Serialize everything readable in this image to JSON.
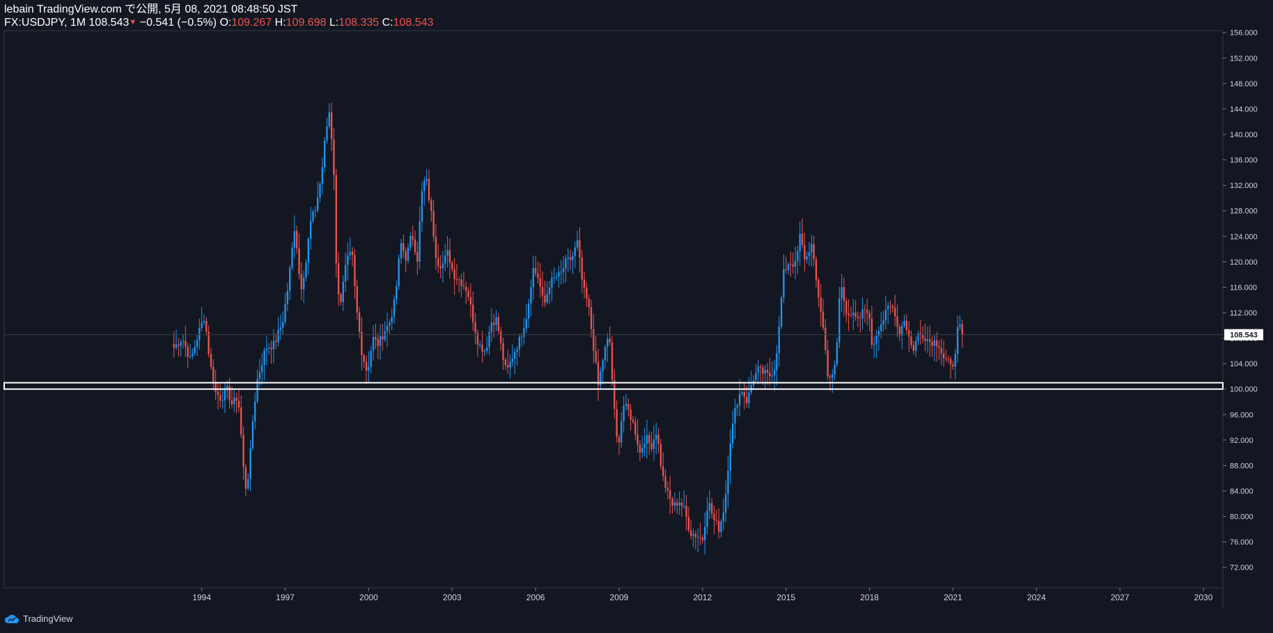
{
  "header": {
    "title": "lebain TradingView.com で公開, 5月 08, 2021 08:48:50 JST",
    "symbol": "FX:USDJPY, 1M",
    "last": "108.543",
    "change": "−0.541 (−0.5%)",
    "o_label": "O:",
    "o_value": "109.267",
    "h_label": "H:",
    "h_value": "109.698",
    "l_label": "L:",
    "l_value": "108.335",
    "c_label": "C:",
    "c_value": "108.543"
  },
  "footer": {
    "brand": "TradingView"
  },
  "colors": {
    "background": "#131722",
    "up": "#2196f3",
    "down": "#ef5350",
    "axis": "#787b86",
    "text": "#d1d4dc",
    "support": "#ffffff",
    "price_tag": "#ffffff"
  },
  "chart_data": {
    "type": "candlestick",
    "symbol": "FX:USDJPY",
    "interval": "1M",
    "price_scale": {
      "ticks": [
        "72.000",
        "76.000",
        "80.000",
        "84.000",
        "88.000",
        "92.000",
        "96.000",
        "100.000",
        "104.000",
        "108.000",
        "112.000",
        "116.000",
        "120.000",
        "124.000",
        "128.000",
        "132.000",
        "136.000",
        "140.000",
        "144.000",
        "148.000",
        "152.000",
        "156.000"
      ],
      "range": [
        68.8,
        156.3
      ]
    },
    "time_scale": {
      "ticks": [
        "1994",
        "1997",
        "2000",
        "2003",
        "2006",
        "2009",
        "2012",
        "2015",
        "2018",
        "2021",
        "2024",
        "2027",
        "2030"
      ],
      "range": [
        1986.9,
        2030.7
      ]
    },
    "last_price": 108.543,
    "last_price_label": "108.543",
    "support_zone": [
      100.0,
      101.0
    ],
    "close_path": [
      [
        1993.0,
        106.5
      ],
      [
        1993.3,
        108.0
      ],
      [
        1993.6,
        104.5
      ],
      [
        1993.9,
        109.0
      ],
      [
        1994.1,
        111.5
      ],
      [
        1994.3,
        104.0
      ],
      [
        1994.5,
        99.5
      ],
      [
        1994.7,
        98.5
      ],
      [
        1994.9,
        100.0
      ],
      [
        1995.1,
        97.5
      ],
      [
        1995.3,
        99.0
      ],
      [
        1995.45,
        91.0
      ],
      [
        1995.55,
        84.0
      ],
      [
        1995.7,
        87.0
      ],
      [
        1995.85,
        96.0
      ],
      [
        1996.0,
        101.5
      ],
      [
        1996.3,
        106.5
      ],
      [
        1996.6,
        107.0
      ],
      [
        1996.9,
        110.5
      ],
      [
        1997.1,
        116.0
      ],
      [
        1997.35,
        126.0
      ],
      [
        1997.55,
        115.5
      ],
      [
        1997.75,
        120.0
      ],
      [
        1997.9,
        126.0
      ],
      [
        1998.1,
        128.5
      ],
      [
        1998.3,
        133.5
      ],
      [
        1998.45,
        140.0
      ],
      [
        1998.6,
        144.0
      ],
      [
        1998.75,
        134.0
      ],
      [
        1998.85,
        116.5
      ],
      [
        1999.0,
        114.0
      ],
      [
        1999.2,
        120.0
      ],
      [
        1999.4,
        121.5
      ],
      [
        1999.55,
        113.0
      ],
      [
        1999.75,
        106.0
      ],
      [
        1999.95,
        102.5
      ],
      [
        2000.15,
        108.0
      ],
      [
        2000.35,
        107.0
      ],
      [
        2000.55,
        109.0
      ],
      [
        2000.75,
        110.5
      ],
      [
        2000.95,
        114.0
      ],
      [
        2001.15,
        123.0
      ],
      [
        2001.35,
        120.5
      ],
      [
        2001.55,
        124.5
      ],
      [
        2001.75,
        120.5
      ],
      [
        2001.9,
        130.5
      ],
      [
        2002.05,
        133.5
      ],
      [
        2002.25,
        127.5
      ],
      [
        2002.45,
        120.0
      ],
      [
        2002.65,
        119.5
      ],
      [
        2002.85,
        121.5
      ],
      [
        2003.05,
        118.0
      ],
      [
        2003.3,
        117.0
      ],
      [
        2003.55,
        115.5
      ],
      [
        2003.75,
        111.0
      ],
      [
        2003.95,
        107.0
      ],
      [
        2004.2,
        106.0
      ],
      [
        2004.4,
        110.5
      ],
      [
        2004.6,
        111.0
      ],
      [
        2004.8,
        105.5
      ],
      [
        2004.95,
        102.5
      ],
      [
        2005.2,
        105.5
      ],
      [
        2005.45,
        108.0
      ],
      [
        2005.7,
        112.0
      ],
      [
        2005.9,
        119.0
      ],
      [
        2006.1,
        117.5
      ],
      [
        2006.3,
        113.0
      ],
      [
        2006.5,
        116.5
      ],
      [
        2006.7,
        117.5
      ],
      [
        2006.9,
        118.0
      ],
      [
        2007.1,
        120.0
      ],
      [
        2007.3,
        120.5
      ],
      [
        2007.5,
        123.0
      ],
      [
        2007.7,
        116.0
      ],
      [
        2007.9,
        113.0
      ],
      [
        2008.1,
        106.0
      ],
      [
        2008.25,
        100.5
      ],
      [
        2008.45,
        105.5
      ],
      [
        2008.65,
        108.5
      ],
      [
        2008.8,
        98.0
      ],
      [
        2008.95,
        90.5
      ],
      [
        2009.15,
        97.5
      ],
      [
        2009.35,
        96.5
      ],
      [
        2009.55,
        94.0
      ],
      [
        2009.75,
        90.0
      ],
      [
        2009.95,
        92.5
      ],
      [
        2010.15,
        91.0
      ],
      [
        2010.35,
        93.5
      ],
      [
        2010.55,
        86.5
      ],
      [
        2010.75,
        83.5
      ],
      [
        2010.95,
        81.5
      ],
      [
        2011.15,
        82.5
      ],
      [
        2011.35,
        81.0
      ],
      [
        2011.55,
        77.5
      ],
      [
        2011.8,
        77.0
      ],
      [
        2012.0,
        76.5
      ],
      [
        2012.2,
        82.5
      ],
      [
        2012.4,
        79.5
      ],
      [
        2012.6,
        78.0
      ],
      [
        2012.8,
        82.0
      ],
      [
        2013.0,
        92.0
      ],
      [
        2013.2,
        97.5
      ],
      [
        2013.4,
        100.0
      ],
      [
        2013.6,
        98.0
      ],
      [
        2013.8,
        101.5
      ],
      [
        2014.0,
        103.0
      ],
      [
        2014.2,
        102.5
      ],
      [
        2014.4,
        102.0
      ],
      [
        2014.6,
        103.5
      ],
      [
        2014.75,
        109.5
      ],
      [
        2014.9,
        118.0
      ],
      [
        2015.1,
        120.0
      ],
      [
        2015.35,
        119.5
      ],
      [
        2015.5,
        124.0
      ],
      [
        2015.7,
        120.0
      ],
      [
        2015.9,
        123.0
      ],
      [
        2016.1,
        116.5
      ],
      [
        2016.3,
        111.0
      ],
      [
        2016.5,
        102.5
      ],
      [
        2016.65,
        101.5
      ],
      [
        2016.8,
        104.5
      ],
      [
        2016.95,
        117.0
      ],
      [
        2017.15,
        112.5
      ],
      [
        2017.4,
        111.5
      ],
      [
        2017.6,
        110.5
      ],
      [
        2017.8,
        112.5
      ],
      [
        2017.95,
        112.5
      ],
      [
        2018.1,
        106.5
      ],
      [
        2018.3,
        109.5
      ],
      [
        2018.5,
        111.0
      ],
      [
        2018.7,
        113.0
      ],
      [
        2018.9,
        112.5
      ],
      [
        2019.05,
        108.5
      ],
      [
        2019.25,
        111.0
      ],
      [
        2019.4,
        108.5
      ],
      [
        2019.55,
        106.0
      ],
      [
        2019.75,
        108.5
      ],
      [
        2019.95,
        108.5
      ],
      [
        2020.15,
        107.5
      ],
      [
        2020.35,
        107.5
      ],
      [
        2020.5,
        107.0
      ],
      [
        2020.65,
        105.0
      ],
      [
        2020.85,
        104.0
      ],
      [
        2020.95,
        103.0
      ],
      [
        2021.05,
        105.0
      ],
      [
        2021.2,
        110.5
      ],
      [
        2021.3,
        108.5
      ]
    ]
  }
}
